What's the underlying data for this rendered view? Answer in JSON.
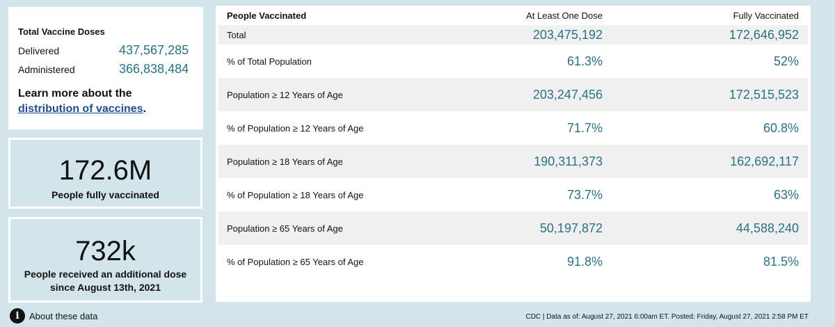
{
  "doses": {
    "title": "Total Vaccine Doses",
    "delivered_label": "Delivered",
    "delivered_value": "437,567,285",
    "administered_label": "Administered",
    "administered_value": "366,838,484",
    "learn_more_prefix": "Learn more about the",
    "learn_more_link": "distribution of vaccines",
    "learn_more_suffix": "."
  },
  "cards": {
    "fully_value": "172.6M",
    "fully_label": "People fully vaccinated",
    "additional_value": "732k",
    "additional_label_line1": "People received an additional dose",
    "additional_label_line2": "since August 13th, 2021"
  },
  "table": {
    "header_label": "People Vaccinated",
    "header_a": "At Least One Dose",
    "header_b": "Fully Vaccinated",
    "rows": [
      {
        "label": "Total",
        "a": "203,475,192",
        "b": "172,646,952"
      },
      {
        "label": "% of Total Population",
        "a": "61.3%",
        "b": "52%"
      },
      {
        "label": "Population ≥ 12 Years of Age",
        "a": "203,247,456",
        "b": "172,515,523"
      },
      {
        "label": "% of Population ≥ 12 Years of Age",
        "a": "71.7%",
        "b": "60.8%"
      },
      {
        "label": "Population ≥ 18 Years of Age",
        "a": "190,311,373",
        "b": "162,692,117"
      },
      {
        "label": "% of Population ≥ 18 Years of Age",
        "a": "73.7%",
        "b": "63%"
      },
      {
        "label": "Population ≥ 65 Years of Age",
        "a": "50,197,872",
        "b": "44,588,240"
      },
      {
        "label": "% of Population ≥ 65 Years of Age",
        "a": "91.8%",
        "b": "81.5%"
      }
    ]
  },
  "footer": {
    "about_icon": "info-icon",
    "about_label": "About these data",
    "note": "CDC | Data as of: August 27, 2021 6:00am ET. Posted: Friday, August 27, 2021 2:58 PM ET"
  },
  "colors": {
    "background": "#d3e5ea",
    "value_accent": "#2a7187",
    "link": "#1f4e8c"
  }
}
